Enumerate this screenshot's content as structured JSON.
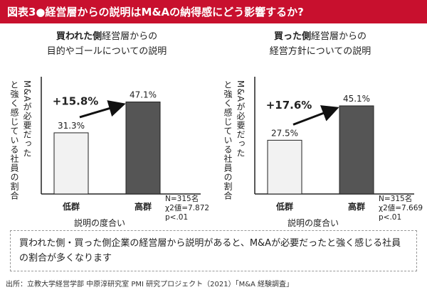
{
  "title": "図表3●経営層からの説明はM&Aの納得感にどう影響するか?",
  "colors": {
    "accent": "#c8102e",
    "bar_light": "#f2f2f2",
    "bar_dark": "#555555",
    "bar_stroke": "#222222"
  },
  "chart_data": [
    {
      "type": "bar",
      "title_line1_bold": "買われた側",
      "title_line1_rest": "経営層からの",
      "title_line2": "目的やゴールについての説明",
      "ylabel": "M&Aが必要だったと強く感じている社員の割合",
      "xlabel": "説明の度合い",
      "categories": [
        "低群",
        "高群"
      ],
      "values": [
        31.3,
        47.1
      ],
      "value_labels": [
        "31.3%",
        "47.1%"
      ],
      "ylim": [
        0,
        60
      ],
      "diff_plus": "+",
      "diff_label": "15.8%",
      "stats": [
        "N=315名",
        "χ2値=7.872",
        "p<.01"
      ]
    },
    {
      "type": "bar",
      "title_line1_bold": "買った側",
      "title_line1_rest": "経営層からの",
      "title_line2": "経営方針についての説明",
      "ylabel": "M&Aが必要だったと強く感じている社員の割合",
      "xlabel": "説明の度合い",
      "categories": [
        "低群",
        "高群"
      ],
      "values": [
        27.5,
        45.1
      ],
      "value_labels": [
        "27.5%",
        "45.1%"
      ],
      "ylim": [
        0,
        60
      ],
      "diff_plus": "+",
      "diff_label": "17.6%",
      "stats": [
        "N=315名",
        "χ2値=7.669",
        "p<.01"
      ]
    }
  ],
  "summary": "買われた側・買った側企業の経営層から説明があると、M&Aが必要だったと強く感じる社員の割合が多くなります",
  "source": "出所：立教大学経営学部 中原淳研究室 PMI 研究プロジェクト（2021）「M&A 経験調査」"
}
